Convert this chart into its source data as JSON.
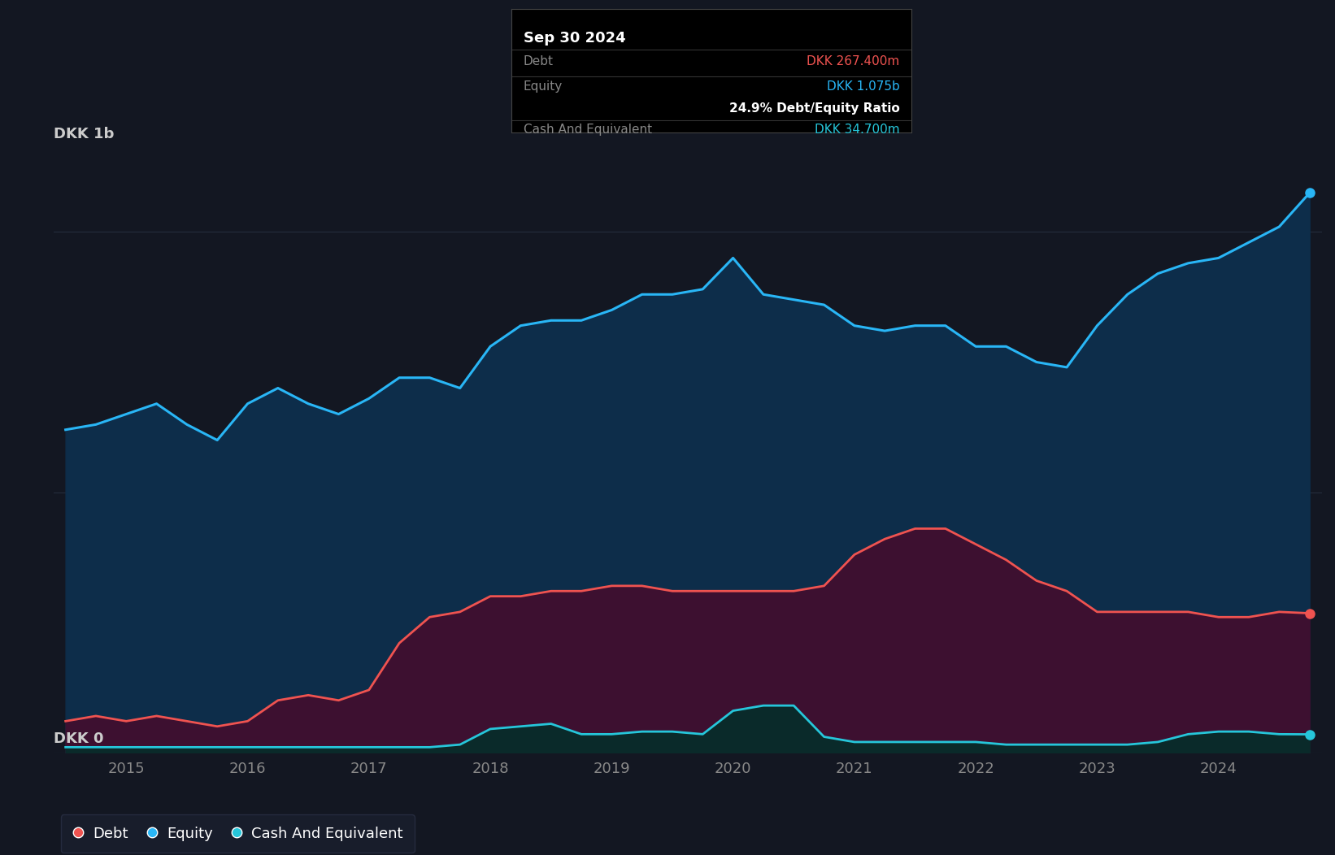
{
  "bg_color": "#131722",
  "plot_bg_color": "#0d1117",
  "equity_color": "#29b6f6",
  "debt_color": "#ef5350",
  "cash_color": "#26c6da",
  "equity_fill_color": "#0d2d4a",
  "debt_fill_color": "#3d1030",
  "cash_fill_color": "#0a2a2a",
  "grid_color": "#252d3d",
  "tooltip_bg": "#000000",
  "legend_bg": "#1a1f2e",
  "x_years": [
    2015,
    2016,
    2017,
    2018,
    2019,
    2020,
    2021,
    2022,
    2023,
    2024
  ],
  "ylabel_top": "DKK 1b",
  "ylabel_bottom": "DKK 0",
  "equity_data_x": [
    2014.5,
    2014.75,
    2015.0,
    2015.25,
    2015.5,
    2015.75,
    2016.0,
    2016.25,
    2016.5,
    2016.75,
    2017.0,
    2017.25,
    2017.5,
    2017.75,
    2018.0,
    2018.25,
    2018.5,
    2018.75,
    2019.0,
    2019.25,
    2019.5,
    2019.75,
    2020.0,
    2020.25,
    2020.5,
    2020.75,
    2021.0,
    2021.25,
    2021.5,
    2021.75,
    2022.0,
    2022.25,
    2022.5,
    2022.75,
    2023.0,
    2023.25,
    2023.5,
    2023.75,
    2024.0,
    2024.25,
    2024.5,
    2024.75
  ],
  "equity_data_y": [
    0.62,
    0.63,
    0.65,
    0.67,
    0.63,
    0.6,
    0.67,
    0.7,
    0.67,
    0.65,
    0.68,
    0.72,
    0.72,
    0.7,
    0.78,
    0.82,
    0.83,
    0.83,
    0.85,
    0.88,
    0.88,
    0.89,
    0.95,
    0.88,
    0.87,
    0.86,
    0.82,
    0.81,
    0.82,
    0.82,
    0.78,
    0.78,
    0.75,
    0.74,
    0.82,
    0.88,
    0.92,
    0.94,
    0.95,
    0.98,
    1.01,
    1.075
  ],
  "debt_data_x": [
    2014.5,
    2014.75,
    2015.0,
    2015.25,
    2015.5,
    2015.75,
    2016.0,
    2016.25,
    2016.5,
    2016.75,
    2017.0,
    2017.25,
    2017.5,
    2017.75,
    2018.0,
    2018.25,
    2018.5,
    2018.75,
    2019.0,
    2019.25,
    2019.5,
    2019.75,
    2020.0,
    2020.25,
    2020.5,
    2020.75,
    2021.0,
    2021.25,
    2021.5,
    2021.75,
    2022.0,
    2022.25,
    2022.5,
    2022.75,
    2023.0,
    2023.25,
    2023.5,
    2023.75,
    2024.0,
    2024.25,
    2024.5,
    2024.75
  ],
  "debt_data_y": [
    0.06,
    0.07,
    0.06,
    0.07,
    0.06,
    0.05,
    0.06,
    0.1,
    0.11,
    0.1,
    0.12,
    0.21,
    0.26,
    0.27,
    0.3,
    0.3,
    0.31,
    0.31,
    0.32,
    0.32,
    0.31,
    0.31,
    0.31,
    0.31,
    0.31,
    0.32,
    0.38,
    0.41,
    0.43,
    0.43,
    0.4,
    0.37,
    0.33,
    0.31,
    0.27,
    0.27,
    0.27,
    0.27,
    0.26,
    0.26,
    0.27,
    0.2674
  ],
  "cash_data_x": [
    2014.5,
    2014.75,
    2015.0,
    2015.25,
    2015.5,
    2015.75,
    2016.0,
    2016.25,
    2016.5,
    2016.75,
    2017.0,
    2017.25,
    2017.5,
    2017.75,
    2018.0,
    2018.25,
    2018.5,
    2018.75,
    2019.0,
    2019.25,
    2019.5,
    2019.75,
    2020.0,
    2020.25,
    2020.5,
    2020.75,
    2021.0,
    2021.25,
    2021.5,
    2021.75,
    2022.0,
    2022.25,
    2022.5,
    2022.75,
    2023.0,
    2023.25,
    2023.5,
    2023.75,
    2024.0,
    2024.25,
    2024.5,
    2024.75
  ],
  "cash_data_y": [
    0.01,
    0.01,
    0.01,
    0.01,
    0.01,
    0.01,
    0.01,
    0.01,
    0.01,
    0.01,
    0.01,
    0.01,
    0.01,
    0.015,
    0.045,
    0.05,
    0.055,
    0.035,
    0.035,
    0.04,
    0.04,
    0.035,
    0.08,
    0.09,
    0.09,
    0.03,
    0.02,
    0.02,
    0.02,
    0.02,
    0.02,
    0.015,
    0.015,
    0.015,
    0.015,
    0.015,
    0.02,
    0.035,
    0.04,
    0.04,
    0.035,
    0.0347
  ],
  "tooltip_date": "Sep 30 2024",
  "tooltip_debt_label": "Debt",
  "tooltip_debt_value": "DKK 267.400m",
  "tooltip_equity_label": "Equity",
  "tooltip_equity_value": "DKK 1.075b",
  "tooltip_ratio": "24.9% Debt/Equity Ratio",
  "tooltip_cash_label": "Cash And Equivalent",
  "tooltip_cash_value": "DKK 34.700m",
  "legend_items": [
    "Debt",
    "Equity",
    "Cash And Equivalent"
  ],
  "ylim": [
    0.0,
    1.15
  ],
  "xlim": [
    2014.4,
    2024.85
  ]
}
